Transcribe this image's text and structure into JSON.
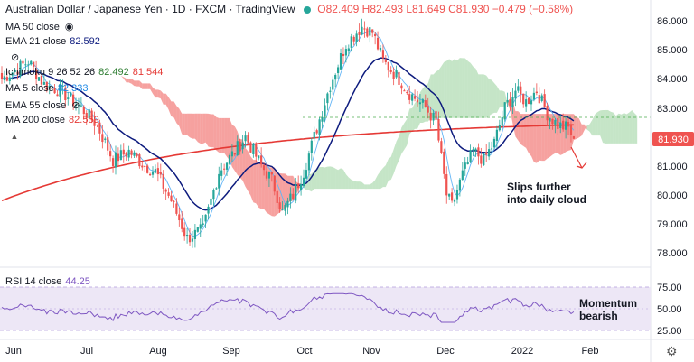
{
  "header": {
    "title": "Australian Dollar / Japanese Yen · 1D · FXCM · TradingView",
    "ohlc": "O82.409 H82.493 L81.649 C81.930 −0.479 (−0.58%)"
  },
  "indicators": [
    {
      "label": "MA 50 close",
      "value": "",
      "color": "#9c27b0"
    },
    {
      "label": "EMA 21 close",
      "value": "82.592",
      "color": "#0d1b7e"
    },
    {
      "label": "",
      "value": "",
      "color": "#131722"
    },
    {
      "label": "Ichimoku 9 26 52 26",
      "value": "82.492",
      "value2": "81.544",
      "color": "#2e7d32",
      "color2": "#e53935"
    },
    {
      "label": "MA 5 close",
      "value": "82.333",
      "color": "#1e88e5"
    },
    {
      "label": "EMA 55 close",
      "value": "",
      "color": "#26a69a"
    },
    {
      "label": "MA 200 close",
      "value": "82.559",
      "color": "#e53935"
    }
  ],
  "rsi": {
    "label": "RSI 14 close",
    "value": "44.25"
  },
  "annotations": {
    "cloud_line1": "Slips further",
    "cloud_line2": "into daily cloud",
    "rsi_line1": "Momentum",
    "rsi_line2": "bearish"
  },
  "colors": {
    "up": "#26a69a",
    "down": "#ef5350",
    "price_badge": "#ef5350",
    "rsi": "#7e57c2"
  },
  "chart_data": {
    "type": "candlestick",
    "x_ticks": [
      "Jun",
      "Jul",
      "Aug",
      "Sep",
      "Oct",
      "Nov",
      "Dec",
      "2022",
      "Feb"
    ],
    "y_ticks": [
      "86.000",
      "85.000",
      "84.000",
      "83.000",
      "82.000",
      "81.000",
      "80.000",
      "79.000",
      "78.000"
    ],
    "ylim": [
      77.5,
      86.6
    ],
    "last_price": "81.930",
    "rsi_ticks": [
      "75.00",
      "50.00",
      "25.00"
    ],
    "rsi_band": [
      30,
      70
    ],
    "anchors": [
      [
        0,
        84.0
      ],
      [
        10,
        84.6
      ],
      [
        16,
        83.8
      ],
      [
        22,
        83.6
      ],
      [
        30,
        83.0
      ],
      [
        36,
        82.4
      ],
      [
        42,
        81.2
      ],
      [
        48,
        81.5
      ],
      [
        54,
        81.0
      ],
      [
        58,
        80.8
      ],
      [
        64,
        79.8
      ],
      [
        70,
        78.5
      ],
      [
        76,
        78.8
      ],
      [
        82,
        80.8
      ],
      [
        88,
        81.5
      ],
      [
        92,
        82.0
      ],
      [
        98,
        81.0
      ],
      [
        102,
        80.5
      ],
      [
        106,
        79.4
      ],
      [
        110,
        80.0
      ],
      [
        114,
        80.8
      ],
      [
        118,
        82.0
      ],
      [
        124,
        83.8
      ],
      [
        130,
        85.2
      ],
      [
        136,
        85.8
      ],
      [
        140,
        85.6
      ],
      [
        144,
        84.6
      ],
      [
        150,
        84.0
      ],
      [
        154,
        83.5
      ],
      [
        160,
        83.0
      ],
      [
        164,
        82.5
      ],
      [
        168,
        80.0
      ],
      [
        170,
        79.6
      ],
      [
        174,
        80.7
      ],
      [
        178,
        81.5
      ],
      [
        182,
        81.2
      ],
      [
        186,
        81.8
      ],
      [
        190,
        83.0
      ],
      [
        194,
        83.6
      ],
      [
        198,
        83.2
      ],
      [
        202,
        83.6
      ],
      [
        206,
        82.8
      ],
      [
        210,
        82.4
      ],
      [
        214,
        82.3
      ],
      [
        216,
        81.93
      ]
    ]
  }
}
